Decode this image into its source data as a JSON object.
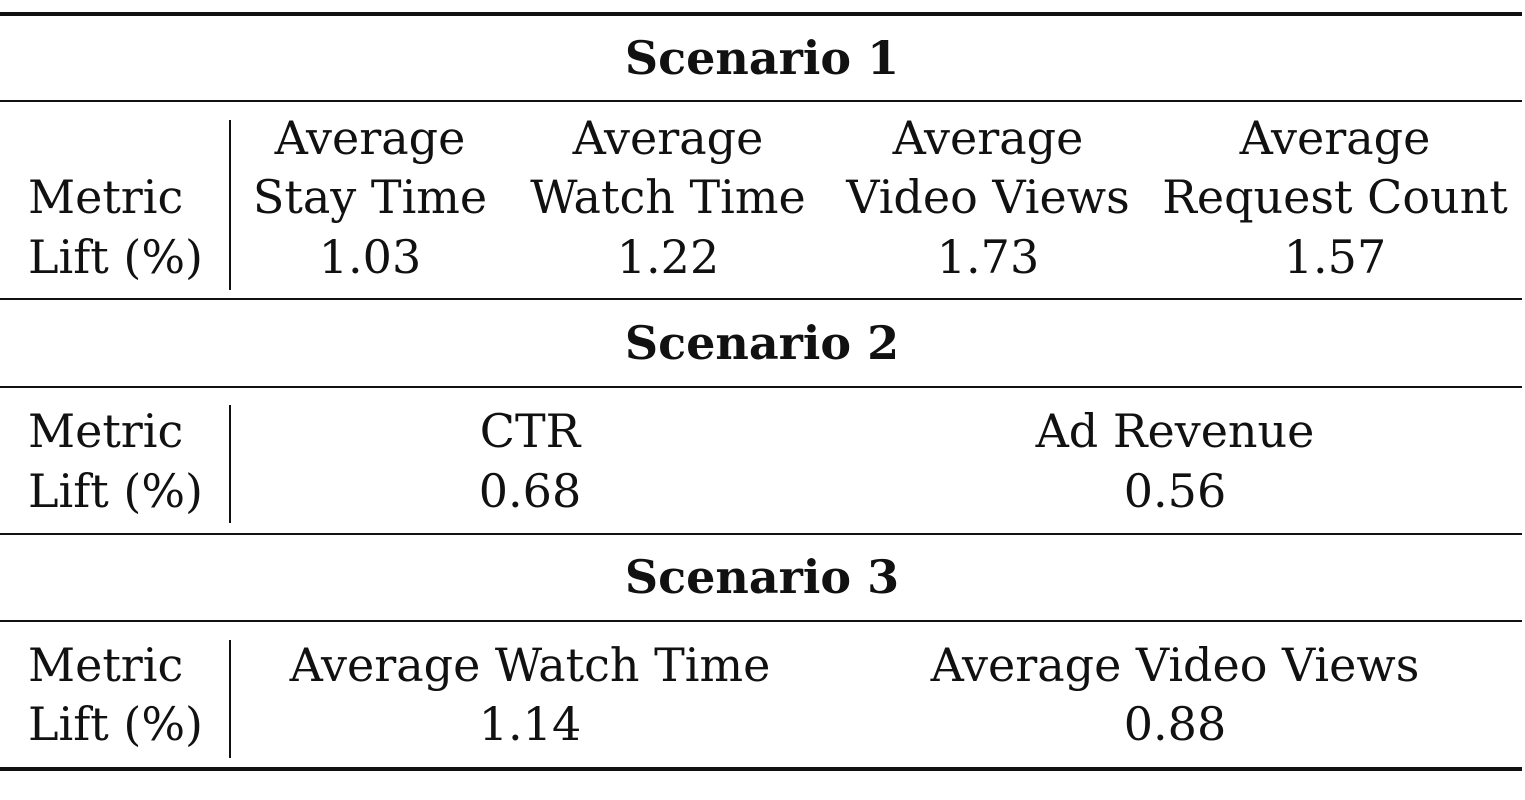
{
  "row_labels": {
    "metric": "Metric",
    "lift": "Lift (%)"
  },
  "scenarios": [
    {
      "title": "Scenario 1",
      "columns": [
        {
          "metric_lines": [
            "Average",
            "Stay Time"
          ],
          "lift": "1.03"
        },
        {
          "metric_lines": [
            "Average",
            "Watch Time"
          ],
          "lift": "1.22"
        },
        {
          "metric_lines": [
            "Average",
            "Video Views"
          ],
          "lift": "1.73"
        },
        {
          "metric_lines": [
            "Average",
            "Request Count"
          ],
          "lift": "1.57"
        }
      ]
    },
    {
      "title": "Scenario 2",
      "columns": [
        {
          "metric_lines": [
            "CTR"
          ],
          "lift": "0.68"
        },
        {
          "metric_lines": [
            "Ad Revenue"
          ],
          "lift": "0.56"
        }
      ]
    },
    {
      "title": "Scenario 3",
      "columns": [
        {
          "metric_lines": [
            "Average Watch Time"
          ],
          "lift": "1.14"
        },
        {
          "metric_lines": [
            "Average Video Views"
          ],
          "lift": "0.88"
        }
      ]
    }
  ]
}
